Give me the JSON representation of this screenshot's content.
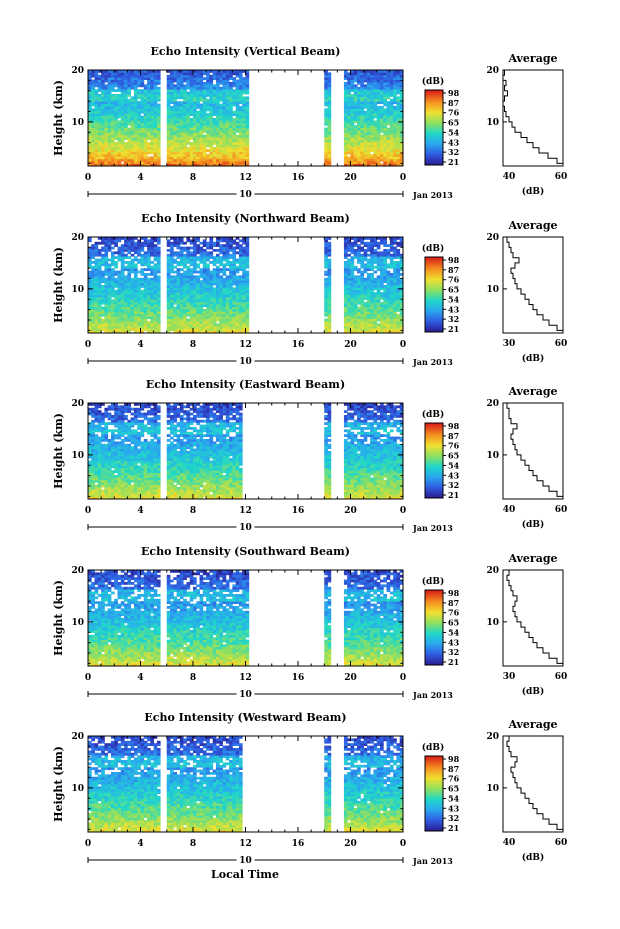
{
  "figure": {
    "xlabel_bottom": "Local Time",
    "date_label": "Jan 2013"
  },
  "chart_data": [
    {
      "type": "heatmap",
      "title": "Echo Intensity (Vertical Beam)",
      "ylabel": "Height (km)",
      "ylim": [
        1.5,
        20
      ],
      "yticks": [
        "10",
        "20"
      ],
      "xticks": [
        "0",
        "4",
        "8",
        "12",
        "16",
        "20",
        "0"
      ],
      "date_tick": "10",
      "xlim_hours": [
        0,
        24
      ],
      "data_gaps_hours": [
        [
          5.5,
          5.9
        ],
        [
          12.3,
          18.0
        ],
        [
          18.6,
          19.4
        ]
      ],
      "colorbar": {
        "label": "(dB)",
        "ticks": [
          "98",
          "87",
          "76",
          "65",
          "54",
          "43",
          "32",
          "21"
        ],
        "range": [
          21,
          98
        ]
      },
      "average_profile": {
        "title": "Average",
        "xlabel": "(dB)",
        "xlim": [
          40,
          60
        ],
        "xticks": [
          "40",
          "60"
        ],
        "ylim": [
          1.5,
          20
        ],
        "yticks": [
          "10",
          "20"
        ],
        "points": [
          [
            60,
            1.5
          ],
          [
            58,
            2
          ],
          [
            55,
            3
          ],
          [
            52,
            4
          ],
          [
            50,
            5
          ],
          [
            48,
            6
          ],
          [
            46,
            7
          ],
          [
            44,
            8
          ],
          [
            43,
            9
          ],
          [
            42,
            10
          ],
          [
            41,
            11
          ],
          [
            40.5,
            12
          ],
          [
            40,
            13
          ],
          [
            40.5,
            14
          ],
          [
            41.5,
            15
          ],
          [
            40.5,
            16
          ],
          [
            41,
            17
          ],
          [
            40,
            18
          ],
          [
            40.5,
            19
          ],
          [
            41,
            20
          ]
        ]
      }
    },
    {
      "type": "heatmap",
      "title": "Echo Intensity (Northward Beam)",
      "ylabel": "Height (km)",
      "ylim": [
        1.5,
        20
      ],
      "yticks": [
        "10",
        "20"
      ],
      "xticks": [
        "0",
        "4",
        "8",
        "12",
        "16",
        "20",
        "0"
      ],
      "date_tick": "10",
      "xlim_hours": [
        0,
        24
      ],
      "data_gaps_hours": [
        [
          5.5,
          5.9
        ],
        [
          12.3,
          18.0
        ],
        [
          18.6,
          19.4
        ]
      ],
      "colorbar": {
        "label": "(dB)",
        "ticks": [
          "98",
          "87",
          "76",
          "65",
          "54",
          "43",
          "32",
          "21"
        ],
        "range": [
          21,
          98
        ]
      },
      "average_profile": {
        "title": "Average",
        "xlabel": "(dB)",
        "xlim": [
          30,
          60
        ],
        "xticks": [
          "30",
          "60"
        ],
        "ylim": [
          1.5,
          20
        ],
        "yticks": [
          "10",
          "20"
        ],
        "points": [
          [
            60,
            1.5
          ],
          [
            57,
            2
          ],
          [
            53,
            3
          ],
          [
            50,
            4
          ],
          [
            47,
            5
          ],
          [
            45,
            6
          ],
          [
            43,
            7
          ],
          [
            41,
            8
          ],
          [
            39,
            9
          ],
          [
            37,
            10
          ],
          [
            36,
            11
          ],
          [
            35,
            12
          ],
          [
            34,
            13
          ],
          [
            36,
            14
          ],
          [
            38,
            15
          ],
          [
            35,
            16
          ],
          [
            34,
            17
          ],
          [
            33,
            18
          ],
          [
            32,
            19
          ],
          [
            33,
            20
          ]
        ]
      }
    },
    {
      "type": "heatmap",
      "title": "Echo Intensity (Eastward Beam)",
      "ylabel": "Height (km)",
      "ylim": [
        1.5,
        20
      ],
      "yticks": [
        "10",
        "20"
      ],
      "xticks": [
        "0",
        "4",
        "8",
        "12",
        "16",
        "20",
        "0"
      ],
      "date_tick": "10",
      "xlim_hours": [
        0,
        24
      ],
      "data_gaps_hours": [
        [
          5.5,
          5.9
        ],
        [
          11.8,
          12.3
        ],
        [
          12.3,
          18.0
        ],
        [
          18.6,
          19.4
        ]
      ],
      "colorbar": {
        "label": "(dB)",
        "ticks": [
          "98",
          "87",
          "76",
          "65",
          "54",
          "43",
          "32",
          "21"
        ],
        "range": [
          21,
          98
        ]
      },
      "average_profile": {
        "title": "Average",
        "xlabel": "(dB)",
        "xlim": [
          30,
          60
        ],
        "xticks": [
          "40",
          "60"
        ],
        "ylim": [
          1.5,
          20
        ],
        "yticks": [
          "10",
          "20"
        ],
        "points": [
          [
            60,
            1.5
          ],
          [
            57,
            2
          ],
          [
            53,
            3
          ],
          [
            50,
            4
          ],
          [
            47,
            5
          ],
          [
            45,
            6
          ],
          [
            43,
            7
          ],
          [
            41,
            8
          ],
          [
            39,
            9
          ],
          [
            37,
            10
          ],
          [
            36,
            11
          ],
          [
            35,
            12
          ],
          [
            34,
            13
          ],
          [
            35,
            14
          ],
          [
            37,
            15
          ],
          [
            34,
            16
          ],
          [
            33,
            17
          ],
          [
            33,
            18
          ],
          [
            32,
            19
          ],
          [
            33,
            20
          ]
        ]
      }
    },
    {
      "type": "heatmap",
      "title": "Echo Intensity (Southward Beam)",
      "ylabel": "Height (km)",
      "ylim": [
        1.5,
        20
      ],
      "yticks": [
        "10",
        "20"
      ],
      "xticks": [
        "0",
        "4",
        "8",
        "12",
        "16",
        "20",
        "0"
      ],
      "date_tick": "10",
      "xlim_hours": [
        0,
        24
      ],
      "data_gaps_hours": [
        [
          5.5,
          5.9
        ],
        [
          12.3,
          18.0
        ],
        [
          18.6,
          19.4
        ]
      ],
      "colorbar": {
        "label": "(dB)",
        "ticks": [
          "98",
          "87",
          "76",
          "65",
          "54",
          "43",
          "32",
          "21"
        ],
        "range": [
          21,
          98
        ]
      },
      "average_profile": {
        "title": "Average",
        "xlabel": "(dB)",
        "xlim": [
          30,
          60
        ],
        "xticks": [
          "30",
          "60"
        ],
        "ylim": [
          1.5,
          20
        ],
        "yticks": [
          "10",
          "20"
        ],
        "points": [
          [
            60,
            1.5
          ],
          [
            57,
            2
          ],
          [
            53,
            3
          ],
          [
            50,
            4
          ],
          [
            47,
            5
          ],
          [
            45,
            6
          ],
          [
            43,
            7
          ],
          [
            41,
            8
          ],
          [
            39,
            9
          ],
          [
            37,
            10
          ],
          [
            36,
            11
          ],
          [
            35,
            12
          ],
          [
            36,
            13
          ],
          [
            37,
            14
          ],
          [
            35,
            15
          ],
          [
            34,
            16
          ],
          [
            33,
            17
          ],
          [
            32,
            18
          ],
          [
            33,
            19
          ],
          [
            34,
            20
          ]
        ]
      }
    },
    {
      "type": "heatmap",
      "title": "Echo Intensity (Westward Beam)",
      "ylabel": "Height (km)",
      "ylim": [
        1.5,
        20
      ],
      "yticks": [
        "10",
        "20"
      ],
      "xticks": [
        "0",
        "4",
        "8",
        "12",
        "16",
        "20",
        "0"
      ],
      "date_tick": "10",
      "xlim_hours": [
        0,
        24
      ],
      "data_gaps_hours": [
        [
          5.5,
          5.9
        ],
        [
          11.8,
          12.3
        ],
        [
          12.3,
          18.0
        ],
        [
          18.6,
          19.4
        ]
      ],
      "colorbar": {
        "label": "(dB)",
        "ticks": [
          "98",
          "87",
          "76",
          "65",
          "54",
          "43",
          "32",
          "21"
        ],
        "range": [
          21,
          98
        ]
      },
      "average_profile": {
        "title": "Average",
        "xlabel": "(dB)",
        "xlim": [
          30,
          60
        ],
        "xticks": [
          "40",
          "60"
        ],
        "ylim": [
          1.5,
          20
        ],
        "yticks": [
          "10",
          "20"
        ],
        "points": [
          [
            60,
            1.5
          ],
          [
            57,
            2
          ],
          [
            53,
            3
          ],
          [
            50,
            4
          ],
          [
            47,
            5
          ],
          [
            45,
            6
          ],
          [
            43,
            7
          ],
          [
            41,
            8
          ],
          [
            39,
            9
          ],
          [
            37,
            10
          ],
          [
            36,
            11
          ],
          [
            35,
            12
          ],
          [
            34,
            13
          ],
          [
            36,
            14
          ],
          [
            37,
            15
          ],
          [
            34,
            16
          ],
          [
            33,
            17
          ],
          [
            32,
            18
          ],
          [
            33,
            19
          ],
          [
            34,
            20
          ]
        ]
      }
    }
  ]
}
